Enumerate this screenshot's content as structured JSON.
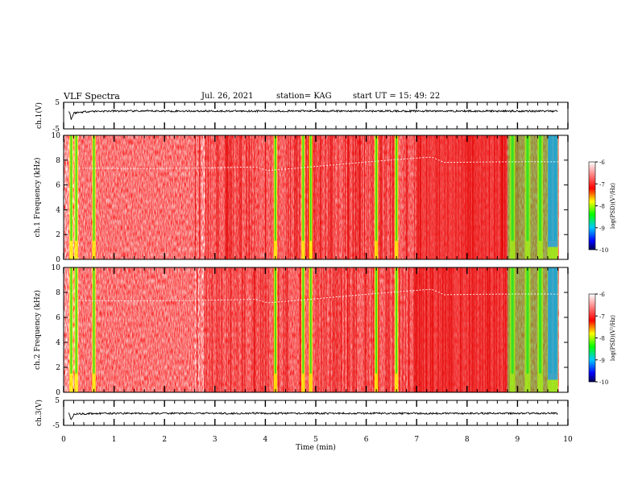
{
  "header": {
    "title": "VLF Spectra",
    "date": "Jul. 26, 2021",
    "station": "station= KAG",
    "start": "start UT = 15: 49: 22"
  },
  "chart_data": [
    {
      "type": "line",
      "panel": "ch1-voltage",
      "ylabel": "ch.1(V)",
      "ylim": [
        -5,
        5
      ],
      "yticks": [
        5,
        -5
      ],
      "xlim": [
        0,
        10
      ],
      "series": [
        {
          "values_description": "waveform near 1.7 V with small noise; dip to about -1.5 V near 0.15 min",
          "x": [
            0.1,
            0.13,
            0.15,
            0.2,
            0.5,
            1,
            2,
            3,
            4,
            5,
            6,
            7,
            8,
            9,
            9.8
          ],
          "y": [
            1.7,
            0.5,
            -1.5,
            1.0,
            1.6,
            1.7,
            1.7,
            1.7,
            1.7,
            1.7,
            1.7,
            1.7,
            1.7,
            1.7,
            1.7
          ]
        }
      ]
    },
    {
      "type": "heatmap",
      "panel": "ch1-spectrogram",
      "ylabel": "ch.1 Frequency (kHz)",
      "ylim": [
        0,
        10
      ],
      "yticks": [
        0,
        2,
        4,
        6,
        8,
        10
      ],
      "xlim": [
        0,
        10
      ],
      "colorbar": {
        "label": "log(PSD)(V²/Hz)",
        "range": [
          -10,
          -6
        ],
        "ticks": [
          -6,
          -7,
          -8,
          -9,
          -10
        ]
      },
      "bursts_min": [
        0.15,
        0.25,
        0.6,
        4.2,
        4.75,
        4.9,
        6.2,
        6.6,
        8.9,
        9.2,
        9.45,
        9.65,
        9.75
      ]
    },
    {
      "type": "heatmap",
      "panel": "ch2-spectrogram",
      "ylabel": "ch.2 Frequency (kHz)",
      "ylim": [
        0,
        10
      ],
      "yticks": [
        0,
        2,
        4,
        6,
        8,
        10
      ],
      "xlim": [
        0,
        10
      ],
      "colorbar": {
        "label": "log(PSD)(V²/Hz)",
        "range": [
          -10,
          -6
        ],
        "ticks": [
          -6,
          -7,
          -8,
          -9,
          -10
        ]
      },
      "bursts_min": [
        0.15,
        0.25,
        0.6,
        4.2,
        4.75,
        4.9,
        6.2,
        6.6,
        8.9,
        9.2,
        9.45,
        9.65,
        9.75
      ]
    },
    {
      "type": "line",
      "panel": "ch3-voltage",
      "ylabel": "ch.3(V)",
      "ylim": [
        -5,
        5
      ],
      "yticks": [
        5,
        -5
      ],
      "xlim": [
        0,
        10
      ],
      "xlabel": "Time (min)",
      "xticks": [
        0,
        1,
        2,
        3,
        4,
        5,
        6,
        7,
        8,
        9,
        10
      ],
      "series": [
        {
          "values_description": "waveform near 0 V with small noise; dip to about -3 V near 0.15 min",
          "x": [
            0.1,
            0.13,
            0.15,
            0.2,
            0.5,
            1,
            2,
            3,
            4,
            5,
            6,
            7,
            8,
            9,
            9.8
          ],
          "y": [
            0.0,
            -1.5,
            -3.0,
            -0.5,
            -0.3,
            -0.2,
            -0.2,
            -0.2,
            -0.2,
            -0.2,
            -0.2,
            -0.2,
            -0.2,
            -0.2,
            -0.2
          ]
        }
      ]
    }
  ],
  "colors": {
    "background": "#ffffff",
    "axis": "#000000",
    "colormap": [
      "#000050",
      "#0000ff",
      "#00c8ff",
      "#00ff00",
      "#ffff00",
      "#ff0000",
      "#ffffff"
    ]
  }
}
